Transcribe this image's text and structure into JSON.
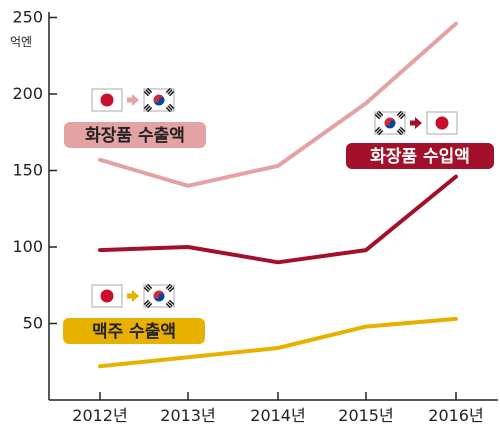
{
  "chart_data": {
    "type": "line",
    "title": "",
    "xlabel": "",
    "ylabel": "",
    "unit": "억엔",
    "categories": [
      "2012년",
      "2013년",
      "2014년",
      "2015년",
      "2016년"
    ],
    "ylim": [
      0,
      250
    ],
    "yticks": [
      50,
      100,
      150,
      200,
      250
    ],
    "grid": false,
    "series": [
      {
        "name": "화장품 수출액",
        "color": "#e3a2a4",
        "values": [
          157,
          140,
          153,
          194,
          246
        ],
        "flags": [
          "japan",
          "korea"
        ],
        "arrow_color": "#e3a2a4"
      },
      {
        "name": "화장품 수입액",
        "color": "#a3102a",
        "values": [
          98,
          100,
          90,
          98,
          146
        ],
        "flags": [
          "korea",
          "japan"
        ],
        "arrow_color": "#a3102a"
      },
      {
        "name": "맥주 수출액",
        "color": "#e8b100",
        "values": [
          22,
          28,
          34,
          48,
          53
        ],
        "flags": [
          "japan",
          "korea"
        ],
        "arrow_color": "#e8b100"
      }
    ]
  },
  "icons": {
    "japan": "japan-flag-icon",
    "korea": "korea-flag-icon",
    "arrow": "arrow-right-icon"
  }
}
